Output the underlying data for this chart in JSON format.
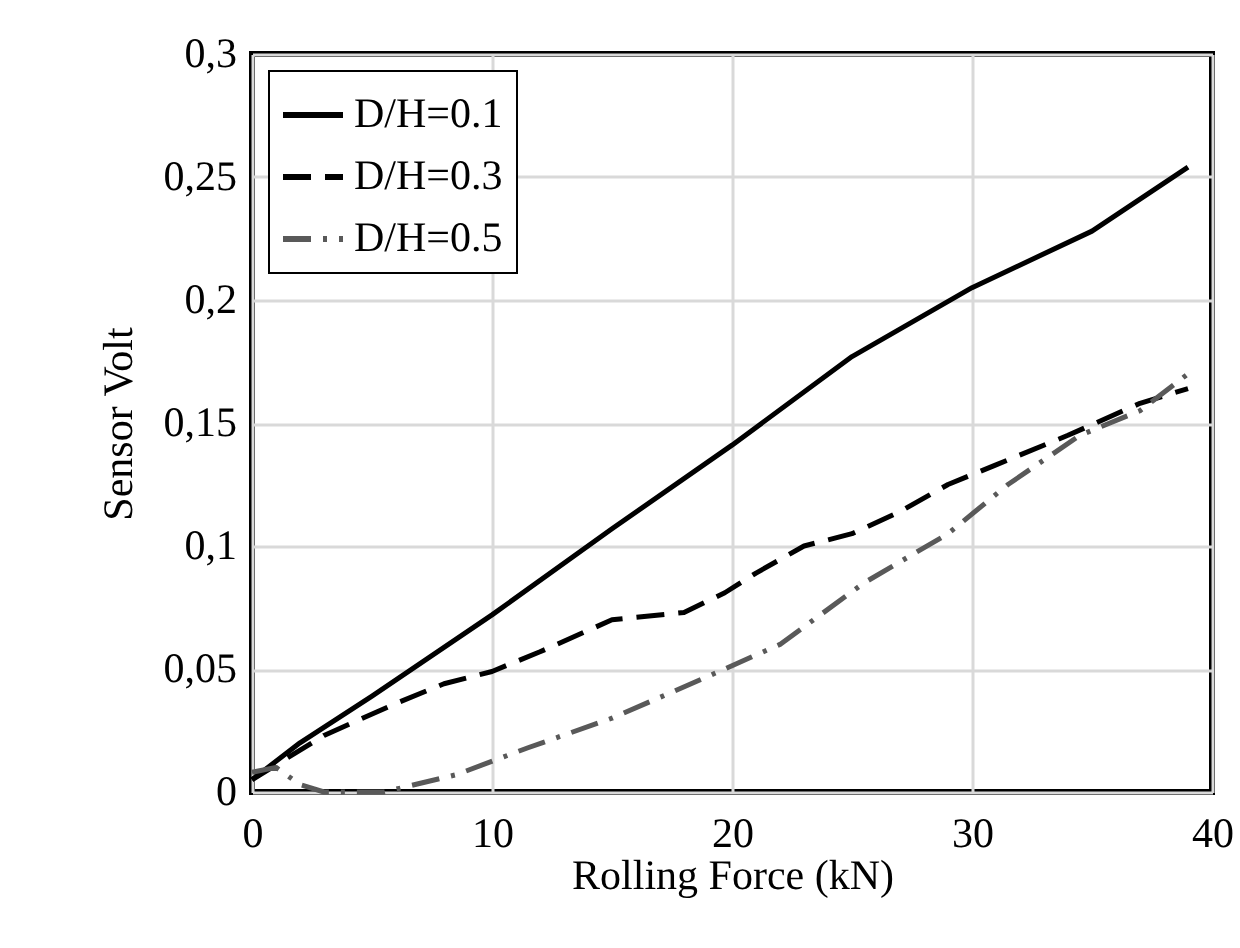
{
  "chart_data": {
    "type": "line",
    "xlabel": "Rolling Force (kN)",
    "ylabel": "Sensor Volt",
    "xlim": [
      0,
      40
    ],
    "xticks": [
      0,
      10,
      20,
      30,
      40
    ],
    "ylim": [
      0,
      0.3
    ],
    "yticks": [
      {
        "value": 0,
        "label": "0"
      },
      {
        "value": 0.05,
        "label": "0,05"
      },
      {
        "value": 0.1,
        "label": "0,1"
      },
      {
        "value": 0.15,
        "label": "0,15"
      },
      {
        "value": 0.2,
        "label": "0,2"
      },
      {
        "value": 0.25,
        "label": "0,25"
      },
      {
        "value": 0.3,
        "label": "0,3"
      }
    ],
    "grid": true,
    "legend": "top left",
    "marker": "none",
    "series": [
      {
        "name": "D/H=0.1",
        "color": "#000000",
        "line_style": "solid",
        "x": [
          0,
          2,
          5,
          10,
          15,
          20,
          25,
          30,
          35,
          39
        ],
        "values": [
          0.005,
          0.02,
          0.039,
          0.072,
          0.107,
          0.141,
          0.177,
          0.205,
          0.228,
          0.254
        ]
      },
      {
        "name": "D/H=0.3",
        "color": "#000000",
        "line_style": "dashed",
        "x": [
          0,
          3,
          6,
          8,
          10,
          12,
          15,
          18,
          19.7,
          21,
          23,
          25,
          27,
          29,
          31,
          34,
          37,
          39
        ],
        "values": [
          0.005,
          0.023,
          0.036,
          0.044,
          0.049,
          0.057,
          0.07,
          0.073,
          0.081,
          0.089,
          0.1,
          0.105,
          0.114,
          0.125,
          0.133,
          0.145,
          0.158,
          0.164
        ]
      },
      {
        "name": "D/H=0.5",
        "color": "#595959",
        "line_style": "dashdot",
        "x": [
          0,
          1,
          2,
          3,
          5.5,
          8.5,
          11.5,
          15,
          19,
          22,
          25.5,
          29,
          31.5,
          34.5,
          37,
          39
        ],
        "values": [
          0.008,
          0.01,
          0.003,
          0,
          0,
          0.007,
          0.018,
          0.03,
          0.047,
          0.06,
          0.085,
          0.105,
          0.125,
          0.145,
          0.155,
          0.17
        ]
      }
    ]
  }
}
